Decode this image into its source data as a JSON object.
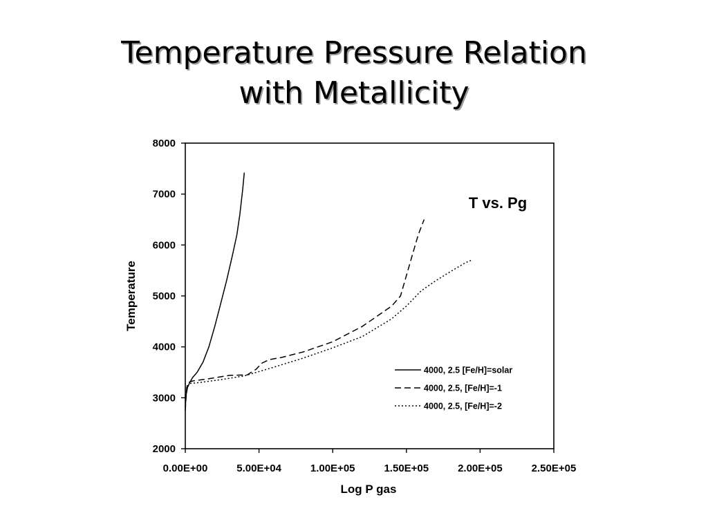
{
  "slide": {
    "title_line1": "Temperature Pressure Relation",
    "title_line2": "with Metallicity"
  },
  "chart_data": {
    "type": "line",
    "title": "",
    "annotation": "T vs. Pg",
    "xlabel": "Log P gas",
    "ylabel": "Temperature",
    "xlim": [
      0,
      250000
    ],
    "ylim": [
      2000,
      8000
    ],
    "x_ticks": [
      0,
      50000,
      100000,
      150000,
      200000,
      250000
    ],
    "x_tick_labels": [
      "0.00E+00",
      "5.00E+04",
      "1.00E+05",
      "1.50E+05",
      "2.00E+05",
      "2.50E+05"
    ],
    "y_ticks": [
      2000,
      3000,
      4000,
      5000,
      6000,
      7000,
      8000
    ],
    "y_tick_labels": [
      "2000",
      "3000",
      "4000",
      "5000",
      "6000",
      "7000",
      "8000"
    ],
    "grid": false,
    "legend_position": "lower-right",
    "series": [
      {
        "name": "4000, 2.5 [Fe/H]=solar",
        "style": "solid",
        "color": "#000000",
        "x": [
          0,
          500,
          1500,
          3000,
          5000,
          8000,
          12000,
          16000,
          20000,
          24000,
          28000,
          32000,
          35000,
          37000,
          39000,
          40000
        ],
        "y": [
          2800,
          3050,
          3200,
          3300,
          3400,
          3500,
          3700,
          4000,
          4400,
          4850,
          5300,
          5800,
          6200,
          6600,
          7100,
          7420
        ]
      },
      {
        "name": "4000, 2.5, [Fe/H]=-1",
        "style": "dashed",
        "color": "#000000",
        "x": [
          0,
          500,
          1000,
          2000,
          5000,
          15000,
          30000,
          42000,
          48000,
          52000,
          57000,
          65000,
          80000,
          100000,
          120000,
          140000,
          146000,
          150000,
          154000,
          158000,
          162000
        ],
        "y": [
          2750,
          3000,
          3200,
          3300,
          3330,
          3370,
          3440,
          3450,
          3560,
          3680,
          3750,
          3790,
          3900,
          4100,
          4400,
          4800,
          5000,
          5400,
          5800,
          6200,
          6500
        ]
      },
      {
        "name": "4000, 2.5, [Fe/H]=-2",
        "style": "dotted",
        "color": "#000000",
        "x": [
          0,
          500,
          1500,
          3000,
          10000,
          25000,
          40000,
          60000,
          80000,
          100000,
          120000,
          140000,
          150000,
          160000,
          170000,
          180000,
          190000,
          194000
        ],
        "y": [
          2900,
          3100,
          3220,
          3280,
          3300,
          3360,
          3430,
          3600,
          3780,
          3980,
          4200,
          4550,
          4800,
          5100,
          5300,
          5480,
          5650,
          5700
        ]
      }
    ]
  }
}
